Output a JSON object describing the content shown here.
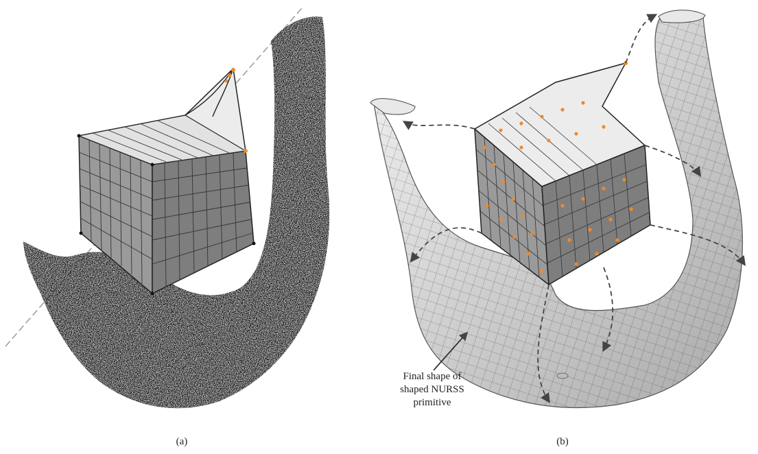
{
  "figure": {
    "panels": [
      {
        "label": "(a)",
        "content": "point-cloud-mandible-with-lattice"
      },
      {
        "label": "(b)",
        "content": "nurss-surface-mandible-with-lattice"
      }
    ],
    "annotation": {
      "line1": "Final shape of",
      "line2": "shaped NURSS",
      "line3": "primitive"
    },
    "colors": {
      "lattice_face": "#8a8a8a",
      "lattice_top": "#ececec",
      "control_point": "#f08a2a",
      "point_cloud": "#111111",
      "surface": "#d9d9d9",
      "arrow": "#444444"
    }
  }
}
